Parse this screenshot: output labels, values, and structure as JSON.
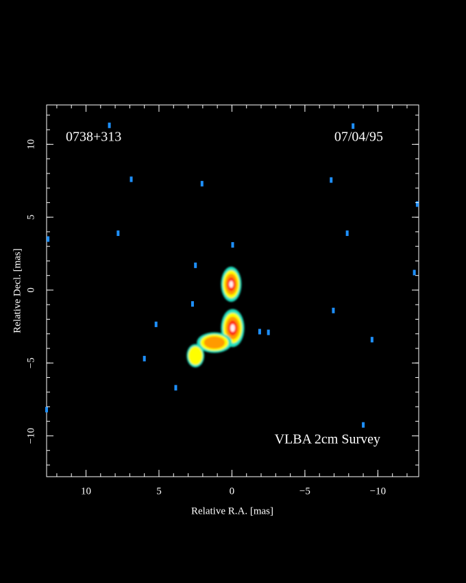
{
  "chart_data": {
    "type": "image",
    "annotations": [
      "0738+313",
      "07/04/95",
      "VLBA 2cm Survey"
    ],
    "xlabel": "Relative R.A. [mas]",
    "ylabel": "Relative Decl. [mas]",
    "xlim": [
      12.7,
      -12.8
    ],
    "ylim": [
      -12.8,
      12.7
    ],
    "xticks": [
      10,
      5,
      0,
      {
        "value": -5,
        "label": "−5"
      },
      {
        "value": -10,
        "label": "−10"
      }
    ],
    "yticks": [
      {
        "value": -10,
        "label": "−10"
      },
      {
        "value": -5,
        "label": "−5"
      },
      0,
      5,
      10
    ],
    "xminorticks": [
      12,
      11,
      10,
      9,
      8,
      7,
      6,
      5,
      4,
      3,
      2,
      1,
      0,
      -1,
      -2,
      -3,
      -4,
      -5,
      -6,
      -7,
      -8,
      -9,
      -10,
      -11,
      -12
    ],
    "yminorticks": [
      -12,
      -11,
      -10,
      -9,
      -8,
      -7,
      -6,
      -5,
      -4,
      -3,
      -2,
      -1,
      0,
      1,
      2,
      3,
      4,
      5,
      6,
      7,
      8,
      9,
      10,
      11,
      12
    ],
    "colormap": [
      "#22e0c0",
      "#ffff00",
      "#ff9a00",
      "#ff3010",
      "#fff0f0"
    ],
    "components": [
      {
        "ra": 0.05,
        "dec": 0.4,
        "width": 1.4,
        "height": 2.4,
        "levels": 5
      },
      {
        "ra": -0.05,
        "dec": -2.6,
        "width": 1.6,
        "height": 2.6,
        "levels": 5
      },
      {
        "ra": 1.2,
        "dec": -3.6,
        "width": 2.4,
        "height": 1.4,
        "levels": 3
      },
      {
        "ra": 2.5,
        "dec": -4.5,
        "width": 1.2,
        "height": 1.6,
        "levels": 2
      }
    ],
    "noise_color": "#1e90ff",
    "noise": {
      "ra": [
        12.6,
        2.05,
        8.4,
        6.9,
        7.8,
        -0.05,
        2.5,
        2.7,
        5.2,
        6.0,
        3.85,
        -1.9,
        -2.5,
        -6.8,
        -7.9,
        -8.3,
        -12.5,
        -12.7,
        -9.0,
        12.7,
        -6.95,
        -9.6
      ],
      "dec": [
        3.5,
        7.3,
        11.3,
        7.6,
        3.9,
        3.1,
        1.7,
        -0.95,
        -2.35,
        -4.7,
        -6.7,
        -2.85,
        -2.9,
        7.55,
        3.9,
        11.25,
        1.2,
        5.9,
        -9.25,
        -8.2,
        -1.4,
        -3.4
      ]
    }
  }
}
